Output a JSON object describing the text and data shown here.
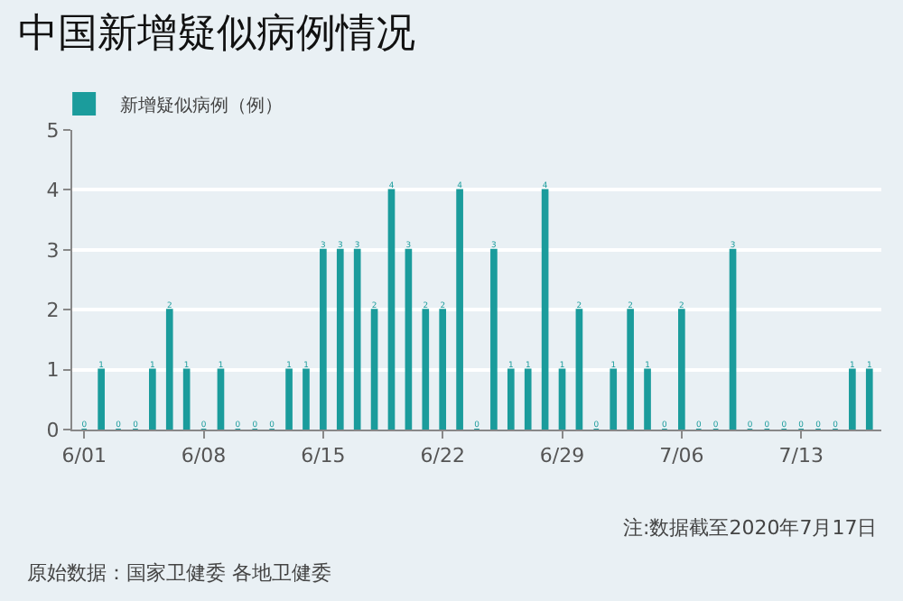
{
  "chart_data": {
    "type": "bar",
    "title": "中国新增疑似病例情况",
    "categories": [
      "6/01",
      null,
      null,
      null,
      null,
      null,
      null,
      "6/08",
      null,
      null,
      null,
      null,
      null,
      null,
      "6/15",
      null,
      null,
      null,
      null,
      null,
      null,
      "6/22",
      null,
      null,
      null,
      null,
      null,
      null,
      "6/29",
      null,
      null,
      null,
      null,
      null,
      null,
      "7/06",
      null,
      null,
      null,
      null,
      null,
      null,
      "7/13",
      null,
      null,
      null,
      null
    ],
    "series": [
      {
        "name": "新增疑似病例（例）",
        "color": "#1b9c9c",
        "values": [
          0,
          1,
          0,
          0,
          1,
          2,
          1,
          0,
          1,
          0,
          0,
          0,
          1,
          1,
          3,
          3,
          3,
          2,
          4,
          3,
          2,
          2,
          4,
          0,
          3,
          1,
          1,
          4,
          1,
          2,
          0,
          1,
          2,
          1,
          0,
          2,
          0,
          0,
          3,
          0,
          0,
          0,
          0,
          0,
          0,
          1,
          1
        ]
      }
    ],
    "ylim": [
      0,
      5
    ],
    "yticks": [
      0,
      1,
      2,
      3,
      4,
      5
    ],
    "grid": "y",
    "legend": "top left",
    "data_labels": true,
    "annotations": [
      "注:数据截至2020年7月17日",
      "原始数据：国家卫健委 各地卫健委"
    ]
  }
}
